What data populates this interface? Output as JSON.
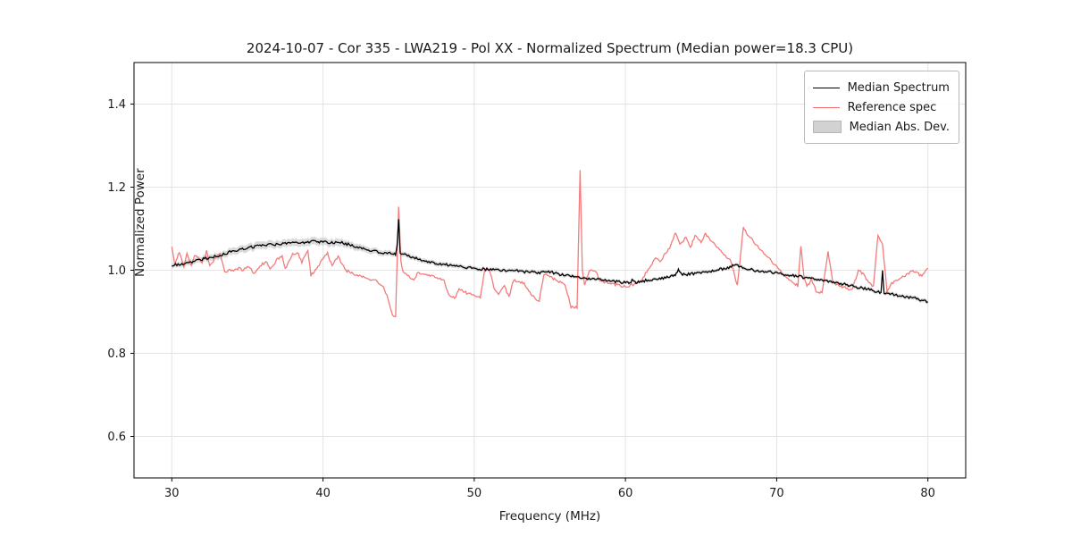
{
  "chart_data": {
    "type": "line",
    "title": "2024-10-07 - Cor 335 - LWA219 - Pol XX - Normalized Spectrum (Median power=18.3 CPU)",
    "xlabel": "Frequency (MHz)",
    "ylabel": "Normalized Power",
    "xlim": [
      27.5,
      82.5
    ],
    "ylim": [
      0.5,
      1.5
    ],
    "xticks": [
      30,
      40,
      50,
      60,
      70,
      80
    ],
    "yticks": [
      0.6,
      0.8,
      1.0,
      1.2,
      1.4
    ],
    "grid": true,
    "grid_color": "#e3e3e3",
    "legend_position": "upper right",
    "jitter": {
      "median": 0.0032,
      "reference": 0.003
    },
    "series": [
      {
        "name": "Median Spectrum",
        "color": "#000000",
        "points": [
          [
            30,
            1.012
          ],
          [
            30.5,
            1.015
          ],
          [
            31,
            1.018
          ],
          [
            31.5,
            1.021
          ],
          [
            32,
            1.026
          ],
          [
            32.5,
            1.03
          ],
          [
            33,
            1.034
          ],
          [
            33.5,
            1.04
          ],
          [
            34,
            1.046
          ],
          [
            34.5,
            1.05
          ],
          [
            35,
            1.054
          ],
          [
            35.5,
            1.057
          ],
          [
            36,
            1.059
          ],
          [
            36.5,
            1.061
          ],
          [
            37,
            1.062
          ],
          [
            37.5,
            1.064
          ],
          [
            38,
            1.065
          ],
          [
            38.5,
            1.067
          ],
          [
            39,
            1.068
          ],
          [
            39.5,
            1.069
          ],
          [
            40,
            1.068
          ],
          [
            40.5,
            1.066
          ],
          [
            41,
            1.068
          ],
          [
            41.5,
            1.064
          ],
          [
            42,
            1.059
          ],
          [
            42.5,
            1.054
          ],
          [
            43,
            1.049
          ],
          [
            43.5,
            1.045
          ],
          [
            44,
            1.042
          ],
          [
            44.5,
            1.04
          ],
          [
            44.8,
            1.038
          ],
          [
            44.9,
            1.06
          ],
          [
            45.0,
            1.125
          ],
          [
            45.1,
            1.04
          ],
          [
            45.5,
            1.036
          ],
          [
            46,
            1.03
          ],
          [
            46.5,
            1.024
          ],
          [
            47,
            1.02
          ],
          [
            47.5,
            1.017
          ],
          [
            48,
            1.014
          ],
          [
            48.5,
            1.011
          ],
          [
            49,
            1.009
          ],
          [
            49.5,
            1.007
          ],
          [
            50,
            1.005
          ],
          [
            50.5,
            1.003
          ],
          [
            51,
            1.002
          ],
          [
            51.5,
            1.001
          ],
          [
            52,
            1.0
          ],
          [
            52.5,
            0.999
          ],
          [
            53,
            0.998
          ],
          [
            53.5,
            0.996
          ],
          [
            54,
            0.995
          ],
          [
            54.5,
            0.994
          ],
          [
            55,
            0.996
          ],
          [
            55.5,
            0.991
          ],
          [
            56,
            0.988
          ],
          [
            56.5,
            0.985
          ],
          [
            57,
            0.983
          ],
          [
            57.5,
            0.98
          ],
          [
            58,
            0.978
          ],
          [
            58.5,
            0.976
          ],
          [
            59,
            0.974
          ],
          [
            59.5,
            0.972
          ],
          [
            60,
            0.97
          ],
          [
            60.3,
            0.969
          ],
          [
            60.5,
            0.978
          ],
          [
            60.7,
            0.97
          ],
          [
            61,
            0.973
          ],
          [
            61.5,
            0.976
          ],
          [
            62,
            0.979
          ],
          [
            62.5,
            0.981
          ],
          [
            63,
            0.984
          ],
          [
            63.3,
            0.99
          ],
          [
            63.5,
            1.0
          ],
          [
            63.7,
            0.989
          ],
          [
            64,
            0.99
          ],
          [
            64.5,
            0.992
          ],
          [
            65,
            0.994
          ],
          [
            65.5,
            0.997
          ],
          [
            66,
            1.0
          ],
          [
            66.5,
            1.004
          ],
          [
            67,
            1.009
          ],
          [
            67.3,
            1.013
          ],
          [
            67.5,
            1.01
          ],
          [
            68,
            1.004
          ],
          [
            68.5,
            1.0
          ],
          [
            69,
            0.998
          ],
          [
            69.5,
            0.996
          ],
          [
            70,
            0.993
          ],
          [
            70.5,
            0.99
          ],
          [
            71,
            0.988
          ],
          [
            71.5,
            0.985
          ],
          [
            72,
            0.981
          ],
          [
            72.5,
            0.978
          ],
          [
            73,
            0.976
          ],
          [
            73.5,
            0.973
          ],
          [
            74,
            0.97
          ],
          [
            74.5,
            0.966
          ],
          [
            75,
            0.962
          ],
          [
            75.5,
            0.958
          ],
          [
            76,
            0.954
          ],
          [
            76.5,
            0.95
          ],
          [
            76.9,
            0.947
          ],
          [
            77.0,
            1.0
          ],
          [
            77.1,
            0.945
          ],
          [
            77.5,
            0.943
          ],
          [
            78,
            0.94
          ],
          [
            78.5,
            0.937
          ],
          [
            79,
            0.934
          ],
          [
            79.5,
            0.929
          ],
          [
            80,
            0.924
          ]
        ]
      },
      {
        "name": "Reference spec",
        "color": "#f26d6d",
        "points": [
          [
            30,
            1.058
          ],
          [
            30.2,
            1.015
          ],
          [
            30.5,
            1.045
          ],
          [
            30.8,
            1.005
          ],
          [
            31,
            1.04
          ],
          [
            31.3,
            1.01
          ],
          [
            31.5,
            1.035
          ],
          [
            32,
            1.02
          ],
          [
            32.3,
            1.045
          ],
          [
            32.5,
            1.01
          ],
          [
            33,
            1.035
          ],
          [
            33.2,
            1.04
          ],
          [
            33.5,
            0.998
          ],
          [
            34,
            1.0
          ],
          [
            34.3,
            1.003
          ],
          [
            34.5,
            1.005
          ],
          [
            34.7,
            0.997
          ],
          [
            35,
            1.01
          ],
          [
            35.5,
            0.992
          ],
          [
            36,
            1.015
          ],
          [
            36.3,
            1.02
          ],
          [
            36.5,
            1.0
          ],
          [
            37,
            1.028
          ],
          [
            37.3,
            1.032
          ],
          [
            37.5,
            1.002
          ],
          [
            38,
            1.038
          ],
          [
            38.3,
            1.044
          ],
          [
            38.6,
            1.02
          ],
          [
            39,
            1.046
          ],
          [
            39.2,
            0.988
          ],
          [
            39.5,
            1.0
          ],
          [
            40,
            1.028
          ],
          [
            40.3,
            1.04
          ],
          [
            40.6,
            1.01
          ],
          [
            41,
            1.035
          ],
          [
            41.3,
            1.012
          ],
          [
            41.5,
            1.0
          ],
          [
            42,
            0.992
          ],
          [
            42.5,
            0.986
          ],
          [
            43,
            0.98
          ],
          [
            43.5,
            0.974
          ],
          [
            44,
            0.962
          ],
          [
            44.3,
            0.93
          ],
          [
            44.6,
            0.893
          ],
          [
            44.8,
            0.89
          ],
          [
            45.0,
            1.155
          ],
          [
            45.15,
            1.02
          ],
          [
            45.3,
            0.995
          ],
          [
            45.5,
            0.99
          ],
          [
            46,
            0.976
          ],
          [
            46.3,
            0.996
          ],
          [
            46.5,
            0.992
          ],
          [
            47,
            0.988
          ],
          [
            47.5,
            0.984
          ],
          [
            48,
            0.976
          ],
          [
            48.3,
            0.942
          ],
          [
            48.7,
            0.932
          ],
          [
            49,
            0.955
          ],
          [
            49.3,
            0.95
          ],
          [
            49.5,
            0.945
          ],
          [
            50,
            0.94
          ],
          [
            50.4,
            0.933
          ],
          [
            50.7,
            1.0
          ],
          [
            51,
            1.003
          ],
          [
            51.3,
            0.96
          ],
          [
            51.6,
            0.94
          ],
          [
            52,
            0.962
          ],
          [
            52.3,
            0.935
          ],
          [
            52.6,
            0.976
          ],
          [
            53,
            0.972
          ],
          [
            53.3,
            0.968
          ],
          [
            53.6,
            0.95
          ],
          [
            54,
            0.932
          ],
          [
            54.3,
            0.928
          ],
          [
            54.6,
            0.99
          ],
          [
            55,
            0.986
          ],
          [
            55.3,
            0.978
          ],
          [
            55.6,
            0.972
          ],
          [
            56,
            0.966
          ],
          [
            56.4,
            0.912
          ],
          [
            56.8,
            0.91
          ],
          [
            57.0,
            1.243
          ],
          [
            57.15,
            1.0
          ],
          [
            57.3,
            0.966
          ],
          [
            57.6,
            1.0
          ],
          [
            58,
            0.998
          ],
          [
            58.3,
            0.976
          ],
          [
            58.6,
            0.972
          ],
          [
            59,
            0.968
          ],
          [
            59.5,
            0.964
          ],
          [
            60,
            0.96
          ],
          [
            60.5,
            0.965
          ],
          [
            61,
            0.972
          ],
          [
            61.5,
            1.002
          ],
          [
            62,
            1.03
          ],
          [
            62.3,
            1.018
          ],
          [
            62.6,
            1.04
          ],
          [
            63,
            1.058
          ],
          [
            63.3,
            1.092
          ],
          [
            63.6,
            1.06
          ],
          [
            64,
            1.08
          ],
          [
            64.3,
            1.055
          ],
          [
            64.6,
            1.082
          ],
          [
            65,
            1.068
          ],
          [
            65.3,
            1.088
          ],
          [
            65.6,
            1.072
          ],
          [
            66,
            1.058
          ],
          [
            66.3,
            1.048
          ],
          [
            66.6,
            1.036
          ],
          [
            67,
            1.02
          ],
          [
            67.4,
            0.962
          ],
          [
            67.8,
            1.102
          ],
          [
            68,
            1.09
          ],
          [
            68.5,
            1.068
          ],
          [
            69,
            1.048
          ],
          [
            69.5,
            1.028
          ],
          [
            70,
            1.008
          ],
          [
            70.5,
            0.988
          ],
          [
            71,
            0.974
          ],
          [
            71.4,
            0.962
          ],
          [
            71.6,
            1.058
          ],
          [
            71.8,
            0.985
          ],
          [
            72,
            0.96
          ],
          [
            72.3,
            0.978
          ],
          [
            72.6,
            0.95
          ],
          [
            73,
            0.945
          ],
          [
            73.4,
            1.045
          ],
          [
            73.7,
            0.972
          ],
          [
            74,
            0.966
          ],
          [
            74.5,
            0.958
          ],
          [
            75,
            0.952
          ],
          [
            75.4,
            1.0
          ],
          [
            75.7,
            0.992
          ],
          [
            76,
            0.976
          ],
          [
            76.4,
            0.96
          ],
          [
            76.7,
            1.086
          ],
          [
            77,
            1.062
          ],
          [
            77.3,
            0.948
          ],
          [
            77.6,
            0.968
          ],
          [
            78,
            0.978
          ],
          [
            78.5,
            0.988
          ],
          [
            79,
            1.0
          ],
          [
            79.3,
            0.992
          ],
          [
            79.6,
            0.986
          ],
          [
            80,
            1.005
          ]
        ]
      }
    ],
    "band": {
      "name": "Median Abs. Dev.",
      "color": "#bdbdbd",
      "halfwidth": [
        [
          30,
          0.006
        ],
        [
          35,
          0.009
        ],
        [
          41,
          0.009
        ],
        [
          45,
          0.006
        ],
        [
          50,
          0.005
        ],
        [
          60,
          0.004
        ],
        [
          70,
          0.004
        ],
        [
          80,
          0.005
        ]
      ]
    }
  }
}
